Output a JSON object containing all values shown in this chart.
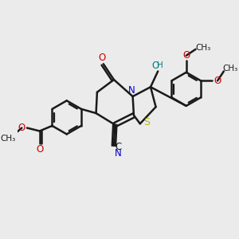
{
  "bg_color": "#ebebeb",
  "bond_color": "#1a1a1a",
  "bond_width": 1.8,
  "figsize": [
    3.0,
    3.0
  ],
  "dpi": 100,
  "colors": {
    "N": "#0000cc",
    "O": "#cc0000",
    "S": "#b8b800",
    "C_bond": "#1a1a1a",
    "OH": "#008080",
    "CN_blue": "#0000cc"
  },
  "xlim": [
    0,
    10
  ],
  "ylim": [
    0,
    10
  ]
}
